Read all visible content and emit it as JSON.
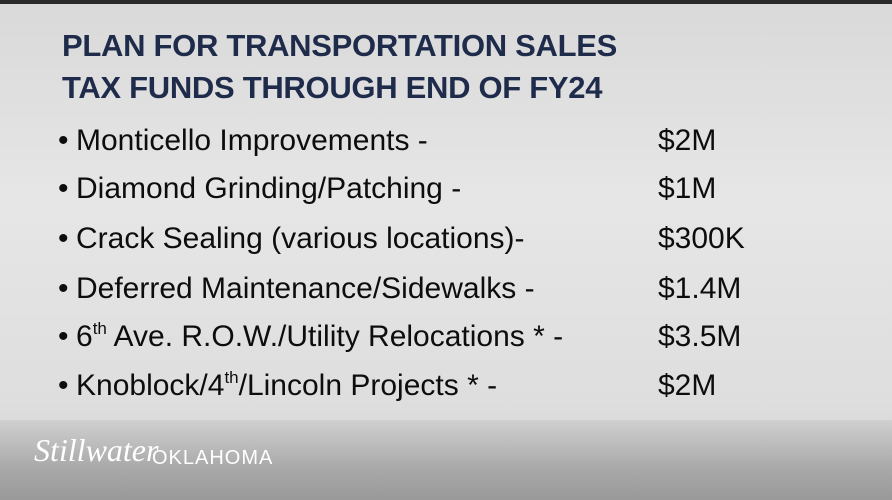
{
  "title": [
    "PLAN FOR TRANSPORTATION SALES",
    "TAX FUNDS THROUGH END OF FY24"
  ],
  "items": [
    {
      "label": [
        {
          "text": "Monticello Improvements -"
        }
      ],
      "amount": "$2M"
    },
    {
      "label": [
        {
          "text": "Diamond Grinding/Patching -"
        }
      ],
      "amount": "$1M"
    },
    {
      "label": [
        {
          "text": "Crack Sealing (various locations)-"
        }
      ],
      "amount": "$300K"
    },
    {
      "label": [
        {
          "text": "Deferred Maintenance/Sidewalks -"
        }
      ],
      "amount": "$1.4M"
    },
    {
      "label": [
        {
          "text": "6"
        },
        {
          "sup": "th"
        },
        {
          "text": " Ave. R.O.W./Utility Relocations * -"
        }
      ],
      "amount": "$3.5M"
    },
    {
      "label": [
        {
          "text": "Knoblock/4"
        },
        {
          "sup": "th"
        },
        {
          "text": "/Lincoln Projects * -"
        }
      ],
      "amount": "$2M"
    }
  ],
  "logo": {
    "script": "Stillwater",
    "state": "OKLAHOMA"
  }
}
